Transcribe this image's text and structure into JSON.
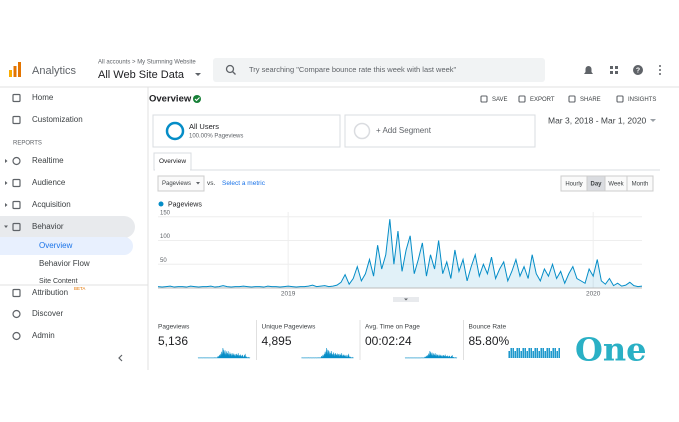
{
  "header": {
    "product": "Analytics",
    "breadcrumb": "All accounts > My Sturnning Website",
    "property": "All Web Site Data",
    "search_placeholder": "Try searching \"Compare bounce rate this week with last week\""
  },
  "sidebar": {
    "top": [
      "Home",
      "Customization"
    ],
    "section": "REPORTS",
    "reports": [
      "Realtime",
      "Audience",
      "Acquisition",
      "Behavior"
    ],
    "behavior_sub": [
      "Overview",
      "Behavior Flow",
      "Site Content"
    ],
    "attribution": {
      "label": "Attribution",
      "badge": "BETA"
    },
    "bottom": [
      "Discover",
      "Admin"
    ]
  },
  "page": {
    "title": "Overview",
    "actions": [
      "SAVE",
      "EXPORT",
      "SHARE",
      "INSIGHTS"
    ],
    "segment": {
      "name": "All Users",
      "detail": "100.00% Pageviews"
    },
    "add_segment": "+ Add Segment",
    "date_range": "Mar 3, 2018 - Mar 1, 2020",
    "tab": "Overview",
    "metric": "Pageviews",
    "vs": "vs.",
    "select_metric": "Select a metric",
    "granularity": [
      "Hourly",
      "Day",
      "Week",
      "Month"
    ]
  },
  "chart_data": {
    "type": "line",
    "ylim": [
      0,
      160
    ],
    "yticks": [
      50,
      100,
      150
    ],
    "categories": [
      null,
      null,
      null,
      null,
      null,
      null,
      null,
      null,
      null,
      null,
      null,
      null,
      null,
      null,
      null,
      null,
      null,
      null,
      null,
      null,
      null,
      null,
      null,
      null,
      null,
      null,
      null,
      null,
      null,
      null,
      null,
      null,
      "2019",
      null,
      null,
      null,
      null,
      null,
      null,
      null,
      null,
      null,
      null,
      null,
      null,
      null,
      null,
      null,
      null,
      null,
      null,
      null,
      null,
      null,
      null,
      null,
      null,
      null,
      null,
      null,
      null,
      null,
      null,
      null,
      null,
      null,
      null,
      null,
      null,
      null,
      null,
      null,
      null,
      null,
      null,
      null,
      null,
      null,
      null,
      null,
      null,
      null,
      null,
      null,
      null,
      null,
      null,
      null,
      null,
      null,
      null,
      null,
      null,
      null,
      null,
      null,
      null,
      null,
      null,
      null,
      null,
      null,
      null,
      null,
      null,
      null,
      null,
      "2020",
      null,
      null,
      null,
      null,
      null,
      null,
      null,
      null,
      null,
      null,
      null,
      null
    ],
    "series": [
      {
        "name": "Pageviews",
        "color": "#058dc7",
        "values": [
          3,
          2,
          3,
          4,
          2,
          3,
          3,
          2,
          4,
          3,
          2,
          3,
          3,
          4,
          2,
          3,
          5,
          3,
          2,
          3,
          3,
          4,
          3,
          2,
          3,
          3,
          2,
          4,
          3,
          3,
          2,
          3,
          4,
          3,
          2,
          3,
          3,
          4,
          6,
          3,
          4,
          5,
          3,
          4,
          6,
          12,
          28,
          8,
          20,
          45,
          15,
          30,
          60,
          25,
          90,
          40,
          70,
          145,
          50,
          120,
          35,
          80,
          110,
          30,
          60,
          95,
          25,
          70,
          40,
          100,
          30,
          55,
          20,
          80,
          35,
          60,
          15,
          45,
          70,
          25,
          50,
          30,
          65,
          20,
          40,
          55,
          15,
          35,
          60,
          25,
          45,
          20,
          70,
          30,
          15,
          40,
          25,
          50,
          20,
          35,
          10,
          30,
          45,
          20,
          15,
          10,
          40,
          25,
          60,
          15,
          8,
          20,
          5,
          10,
          4,
          6,
          12,
          5,
          3,
          4
        ]
      }
    ]
  },
  "metrics": [
    {
      "label": "Pageviews",
      "value": "5,136"
    },
    {
      "label": "Unique Pageviews",
      "value": "4,895"
    },
    {
      "label": "Avg. Time on Page",
      "value": "00:02:24"
    },
    {
      "label": "Bounce Rate",
      "value": "85.80%"
    }
  ],
  "watermark": "One"
}
